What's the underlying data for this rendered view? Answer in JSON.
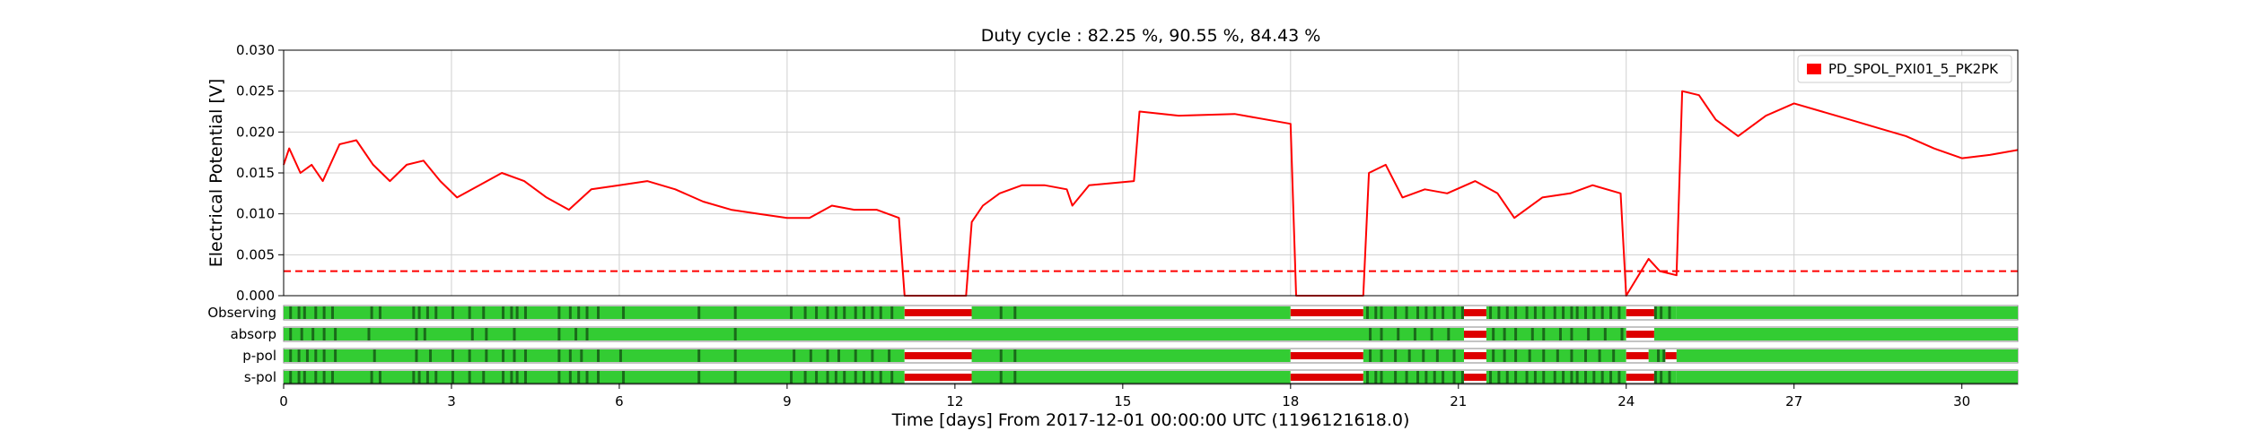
{
  "chart_data": {
    "type": "line",
    "title": "Duty cycle : 82.25 %, 90.55 %, 84.43 %",
    "xlabel": "Time [days] From 2017-12-01 00:00:00 UTC (1196121618.0)",
    "ylabel": "Electrical Potential [V]",
    "xlim": [
      0,
      31
    ],
    "ylim": [
      0,
      0.03
    ],
    "x_ticks": [
      0,
      3,
      6,
      9,
      12,
      15,
      18,
      21,
      24,
      27,
      30
    ],
    "y_ticks": [
      "0.000",
      "0.005",
      "0.010",
      "0.015",
      "0.020",
      "0.025",
      "0.030"
    ],
    "grid": true,
    "legend_position": "top-right",
    "threshold": 0.003,
    "series": [
      {
        "name": "PD_SPOL_PXI01_5_PK2PK",
        "color": "#ff0000",
        "x": [
          0.0,
          0.1,
          0.3,
          0.5,
          0.7,
          1.0,
          1.3,
          1.6,
          1.9,
          2.2,
          2.5,
          2.8,
          3.1,
          3.5,
          3.9,
          4.3,
          4.7,
          5.1,
          5.5,
          6.0,
          6.5,
          7.0,
          7.5,
          8.0,
          8.5,
          9.0,
          9.4,
          9.8,
          10.2,
          10.6,
          11.0,
          11.1,
          12.2,
          12.3,
          12.5,
          12.8,
          13.2,
          13.6,
          14.0,
          14.1,
          14.4,
          15.2,
          15.3,
          16.0,
          17.0,
          18.0,
          18.1,
          19.3,
          19.4,
          19.7,
          20.0,
          20.4,
          20.8,
          21.3,
          21.7,
          22.0,
          22.5,
          23.0,
          23.4,
          23.9,
          24.0,
          24.4,
          24.6,
          24.9,
          25.0,
          25.3,
          25.6,
          26.0,
          26.5,
          27.0,
          27.5,
          28.0,
          28.5,
          29.0,
          29.5,
          30.0,
          30.5,
          31.0
        ],
        "y": [
          0.016,
          0.018,
          0.015,
          0.016,
          0.014,
          0.0185,
          0.019,
          0.016,
          0.014,
          0.016,
          0.0165,
          0.014,
          0.012,
          0.0135,
          0.015,
          0.014,
          0.012,
          0.0105,
          0.013,
          0.0135,
          0.014,
          0.013,
          0.0115,
          0.0105,
          0.01,
          0.0095,
          0.0095,
          0.011,
          0.0105,
          0.0105,
          0.0095,
          0.0,
          0.0,
          0.009,
          0.011,
          0.0125,
          0.0135,
          0.0135,
          0.013,
          0.011,
          0.0135,
          0.014,
          0.0225,
          0.022,
          0.0222,
          0.021,
          0.0,
          0.0,
          0.015,
          0.016,
          0.012,
          0.013,
          0.0125,
          0.014,
          0.0125,
          0.0095,
          0.012,
          0.0125,
          0.0135,
          0.0125,
          0.0,
          0.0045,
          0.003,
          0.0025,
          0.025,
          0.0245,
          0.0215,
          0.0195,
          0.022,
          0.0235,
          0.0225,
          0.0215,
          0.0205,
          0.0195,
          0.018,
          0.0168,
          0.0172,
          0.0178
        ]
      }
    ],
    "status_rows": [
      {
        "name": "Observing",
        "segments": [
          [
            0,
            11.1,
            "on"
          ],
          [
            11.1,
            12.3,
            "off"
          ],
          [
            12.3,
            18.0,
            "on"
          ],
          [
            18.0,
            19.3,
            "off"
          ],
          [
            19.3,
            21.1,
            "on"
          ],
          [
            21.1,
            21.5,
            "off"
          ],
          [
            21.5,
            24.0,
            "on"
          ],
          [
            24.0,
            24.5,
            "off"
          ],
          [
            24.5,
            24.9,
            "on"
          ],
          [
            24.9,
            31.0,
            "on"
          ]
        ],
        "gaps": [
          0.1,
          0.25,
          0.35,
          0.55,
          0.7,
          0.85,
          1.55,
          1.7,
          2.3,
          2.4,
          2.55,
          2.7,
          3.0,
          3.3,
          3.55,
          3.9,
          4.05,
          4.15,
          4.3,
          4.9,
          5.1,
          5.25,
          5.4,
          5.6,
          6.05,
          7.4,
          8.05,
          9.05,
          9.3,
          9.5,
          9.7,
          9.85,
          10.0,
          10.2,
          10.35,
          10.5,
          10.65,
          10.85,
          12.8,
          13.05,
          19.35,
          19.5,
          19.6,
          19.85,
          20.05,
          20.25,
          20.4,
          20.55,
          20.7,
          20.9,
          21.05,
          21.55,
          21.7,
          21.85,
          22.0,
          22.2,
          22.35,
          22.5,
          22.7,
          22.85,
          23.0,
          23.1,
          23.25,
          23.4,
          23.55,
          23.7,
          23.85,
          24.5,
          24.6,
          24.75
        ]
      },
      {
        "name": "absorp",
        "segments": [
          [
            0,
            21.1,
            "on"
          ],
          [
            21.1,
            21.5,
            "off"
          ],
          [
            21.5,
            24.0,
            "on"
          ],
          [
            24.0,
            24.5,
            "off"
          ],
          [
            24.5,
            31.0,
            "on"
          ]
        ],
        "gaps": [
          0.1,
          0.3,
          0.5,
          0.7,
          0.9,
          1.5,
          2.35,
          2.5,
          3.35,
          3.6,
          4.1,
          4.9,
          5.2,
          5.4,
          8.05,
          19.4,
          19.6,
          19.9,
          20.2,
          20.5,
          20.8,
          21.6,
          21.8,
          22.0,
          22.3,
          22.5,
          22.8,
          23.0,
          23.3,
          23.6,
          23.9
        ]
      },
      {
        "name": "p-pol",
        "segments": [
          [
            0,
            11.1,
            "on"
          ],
          [
            11.1,
            12.3,
            "off"
          ],
          [
            12.3,
            18.0,
            "on"
          ],
          [
            18.0,
            19.3,
            "off"
          ],
          [
            19.3,
            21.1,
            "on"
          ],
          [
            21.1,
            21.5,
            "off"
          ],
          [
            21.5,
            24.0,
            "on"
          ],
          [
            24.0,
            24.4,
            "off"
          ],
          [
            24.4,
            24.7,
            "on"
          ],
          [
            24.7,
            24.9,
            "off"
          ],
          [
            24.9,
            31.0,
            "on"
          ]
        ],
        "gaps": [
          0.1,
          0.25,
          0.4,
          0.55,
          0.7,
          0.9,
          1.6,
          2.35,
          2.6,
          3.0,
          3.3,
          3.6,
          3.9,
          4.1,
          4.3,
          4.9,
          5.1,
          5.3,
          5.6,
          6.0,
          7.4,
          8.05,
          9.1,
          9.4,
          9.7,
          9.9,
          10.2,
          10.5,
          10.8,
          12.8,
          13.05,
          19.4,
          19.6,
          19.85,
          20.1,
          20.35,
          20.6,
          20.9,
          21.6,
          21.8,
          22.0,
          22.25,
          22.5,
          22.75,
          23.0,
          23.25,
          23.5,
          23.75,
          24.55,
          24.65
        ]
      },
      {
        "name": "s-pol",
        "segments": [
          [
            0,
            11.1,
            "on"
          ],
          [
            11.1,
            12.3,
            "off"
          ],
          [
            12.3,
            18.0,
            "on"
          ],
          [
            18.0,
            19.3,
            "off"
          ],
          [
            19.3,
            21.1,
            "on"
          ],
          [
            21.1,
            21.5,
            "off"
          ],
          [
            21.5,
            24.0,
            "on"
          ],
          [
            24.0,
            24.5,
            "off"
          ],
          [
            24.5,
            24.9,
            "on"
          ],
          [
            24.9,
            31.0,
            "on"
          ]
        ],
        "gaps": [
          0.1,
          0.25,
          0.35,
          0.55,
          0.7,
          0.85,
          1.55,
          1.7,
          2.3,
          2.4,
          2.55,
          2.7,
          3.0,
          3.3,
          3.55,
          3.9,
          4.05,
          4.15,
          4.3,
          4.9,
          5.1,
          5.25,
          5.4,
          5.6,
          6.05,
          7.4,
          8.05,
          9.05,
          9.3,
          9.5,
          9.7,
          9.85,
          10.0,
          10.2,
          10.35,
          10.5,
          10.65,
          10.85,
          12.8,
          13.05,
          19.35,
          19.5,
          19.6,
          19.85,
          20.05,
          20.25,
          20.4,
          20.55,
          20.7,
          20.9,
          21.05,
          21.55,
          21.7,
          21.85,
          22.0,
          22.2,
          22.35,
          22.5,
          22.7,
          22.85,
          23.0,
          23.1,
          23.25,
          23.4,
          23.55,
          23.7,
          23.85,
          24.5,
          24.6,
          24.75
        ]
      }
    ],
    "colors": {
      "line": "#ff0000",
      "on": "#33cc33",
      "gap": "#1a6b1a",
      "off": "#dd0000",
      "grid": "#d0d0d0"
    }
  }
}
